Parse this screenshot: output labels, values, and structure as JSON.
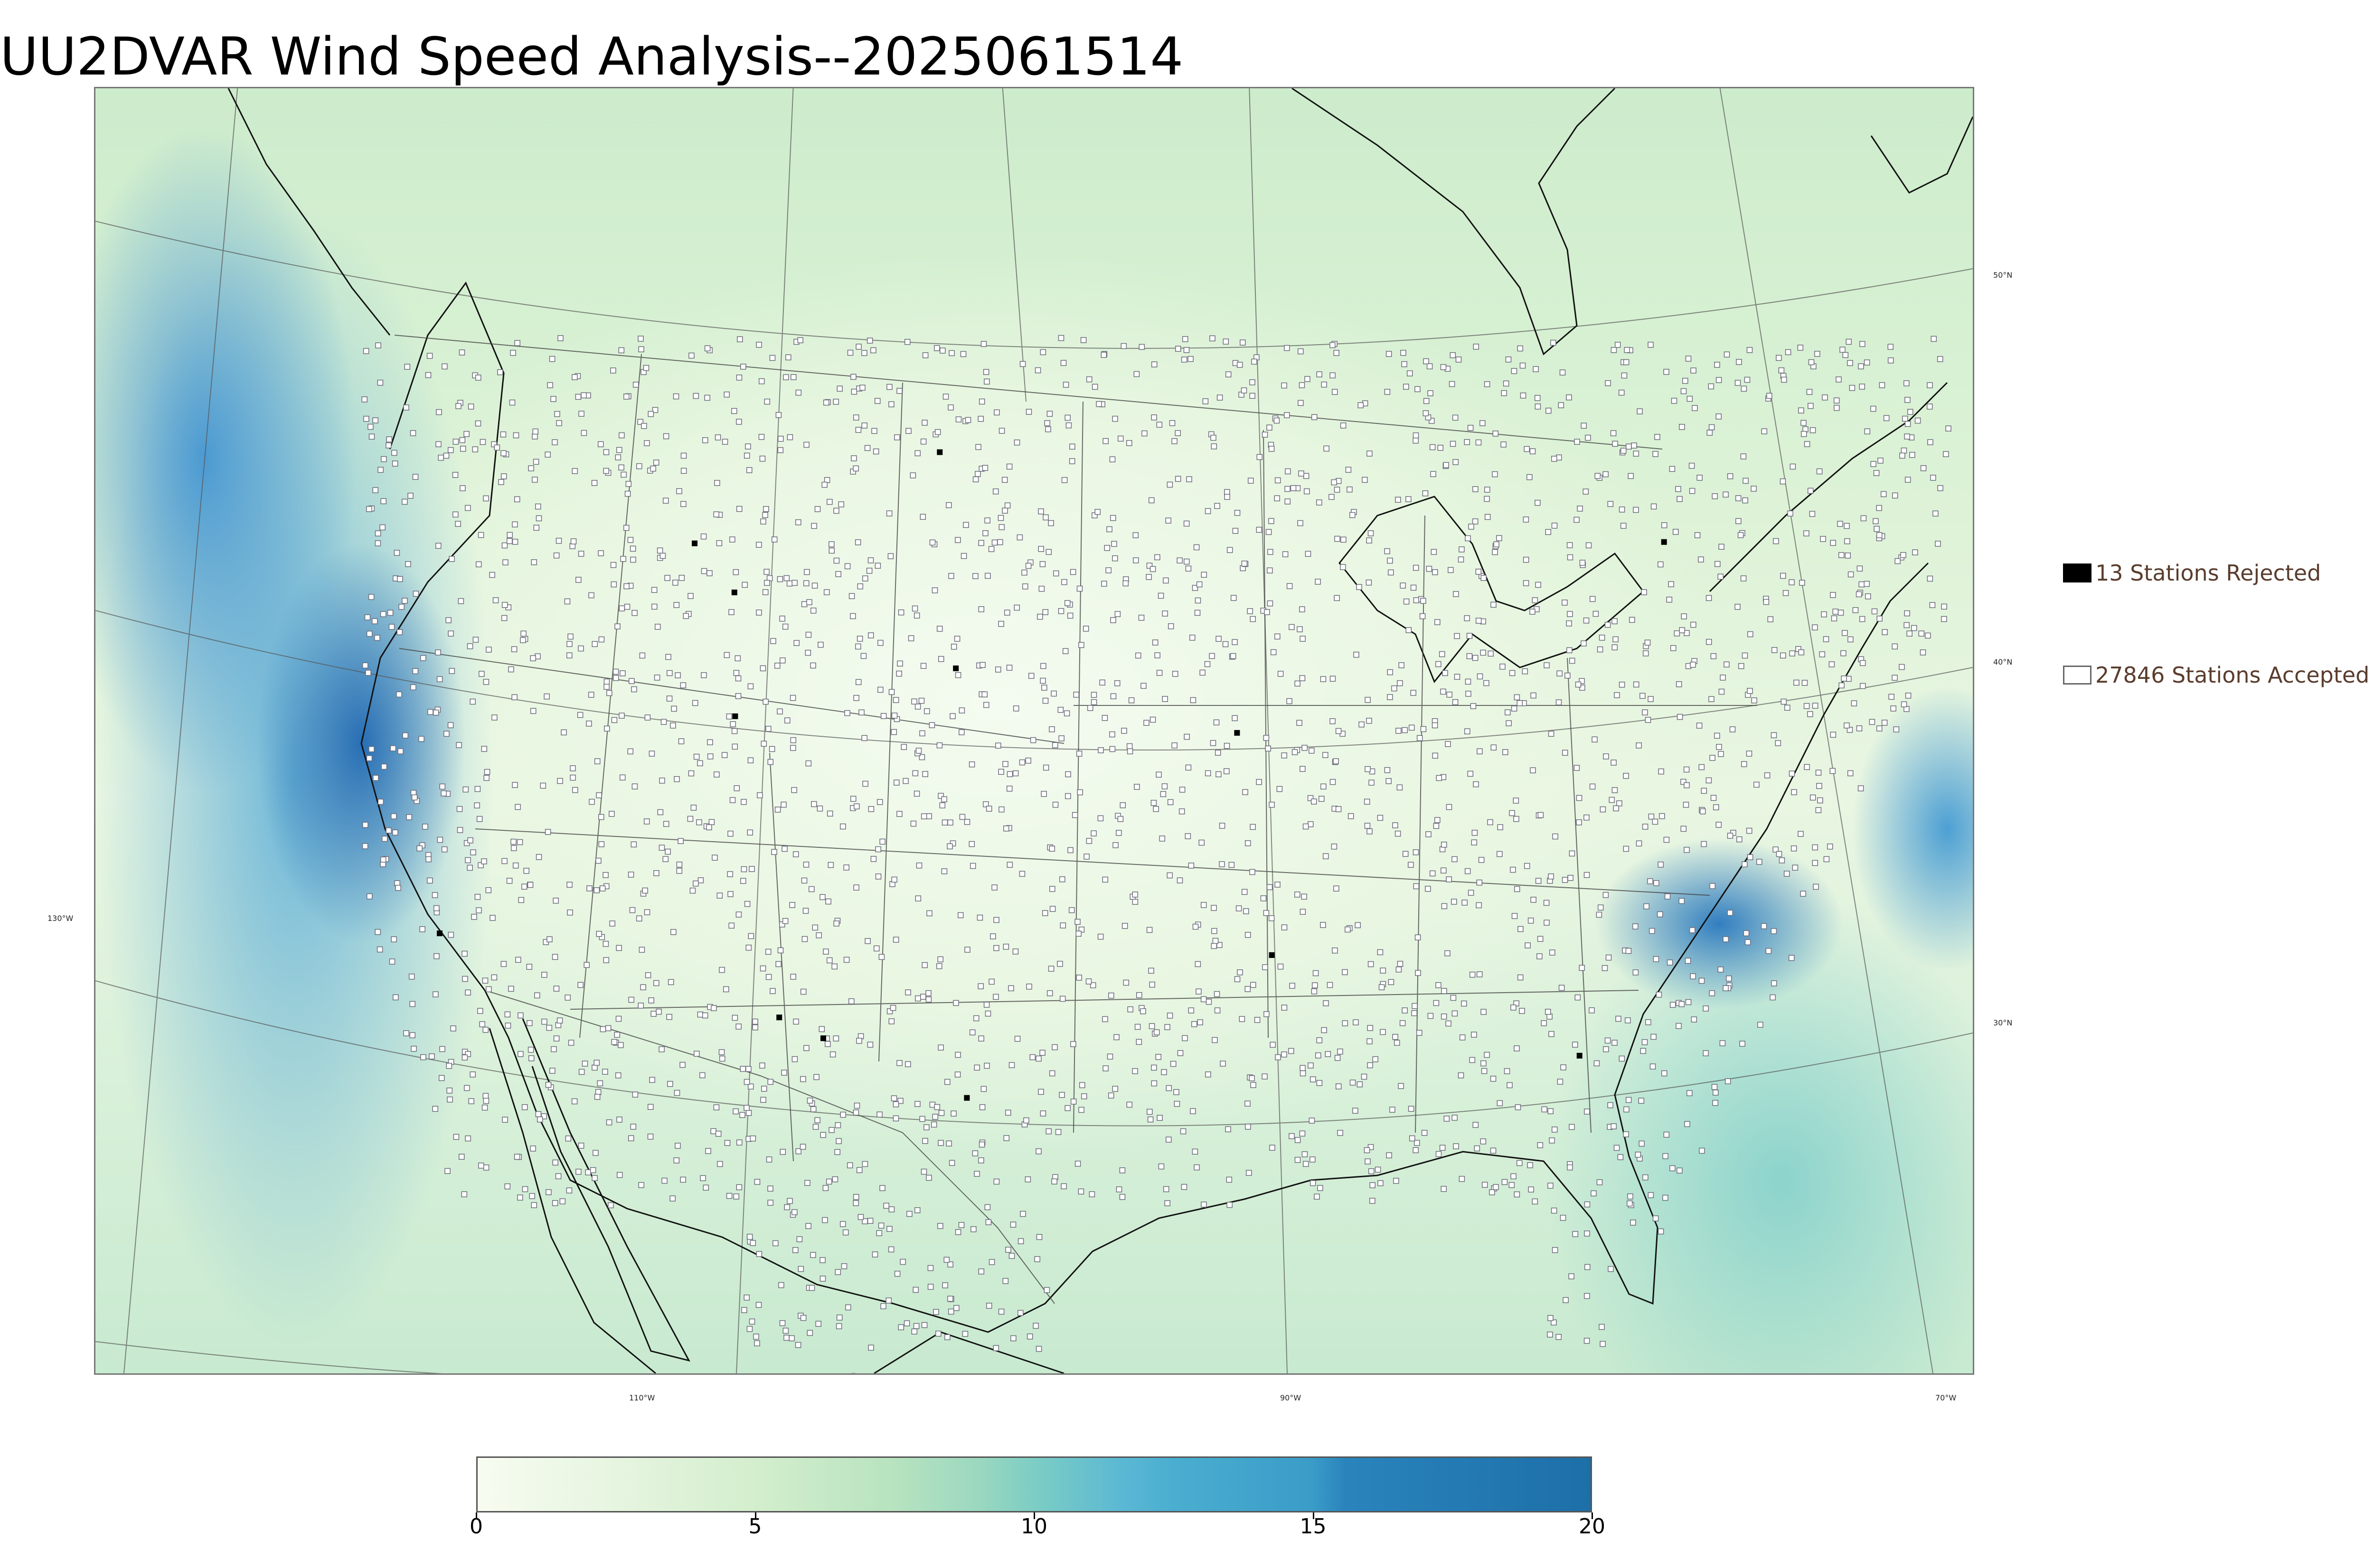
{
  "title": "UU2DVAR Wind Speed Analysis--2025061514",
  "graticule_labels": {
    "lon_130w": "130°W",
    "lon_110w": "110°W",
    "lon_90w": "90°W",
    "lon_70w": "70°W",
    "lat_50n": "50°N",
    "lat_40n": "40°N",
    "lat_30n": "30°N"
  },
  "legend": {
    "rejected": "13 Stations Rejected",
    "accepted": "27846 Stations Accepted"
  },
  "colorbar": {
    "min": 0,
    "max": 20,
    "ticks": [
      "0",
      "5",
      "10",
      "15",
      "20"
    ],
    "colors": [
      "#f7fcf0",
      "#d3eecd",
      "#9bd8c0",
      "#5ab8d4",
      "#3a9cc8",
      "#1d6fa8"
    ]
  },
  "colors": {
    "land_low_wind": "#f1f9ea",
    "ocean_high_wind": "#4a9fd0",
    "station_marker": "#6b6b7a",
    "rejected_marker": "#000000",
    "legend_text": "#5a3d2e"
  },
  "stations": {
    "rejected_count": 13,
    "accepted_count": 27846
  }
}
